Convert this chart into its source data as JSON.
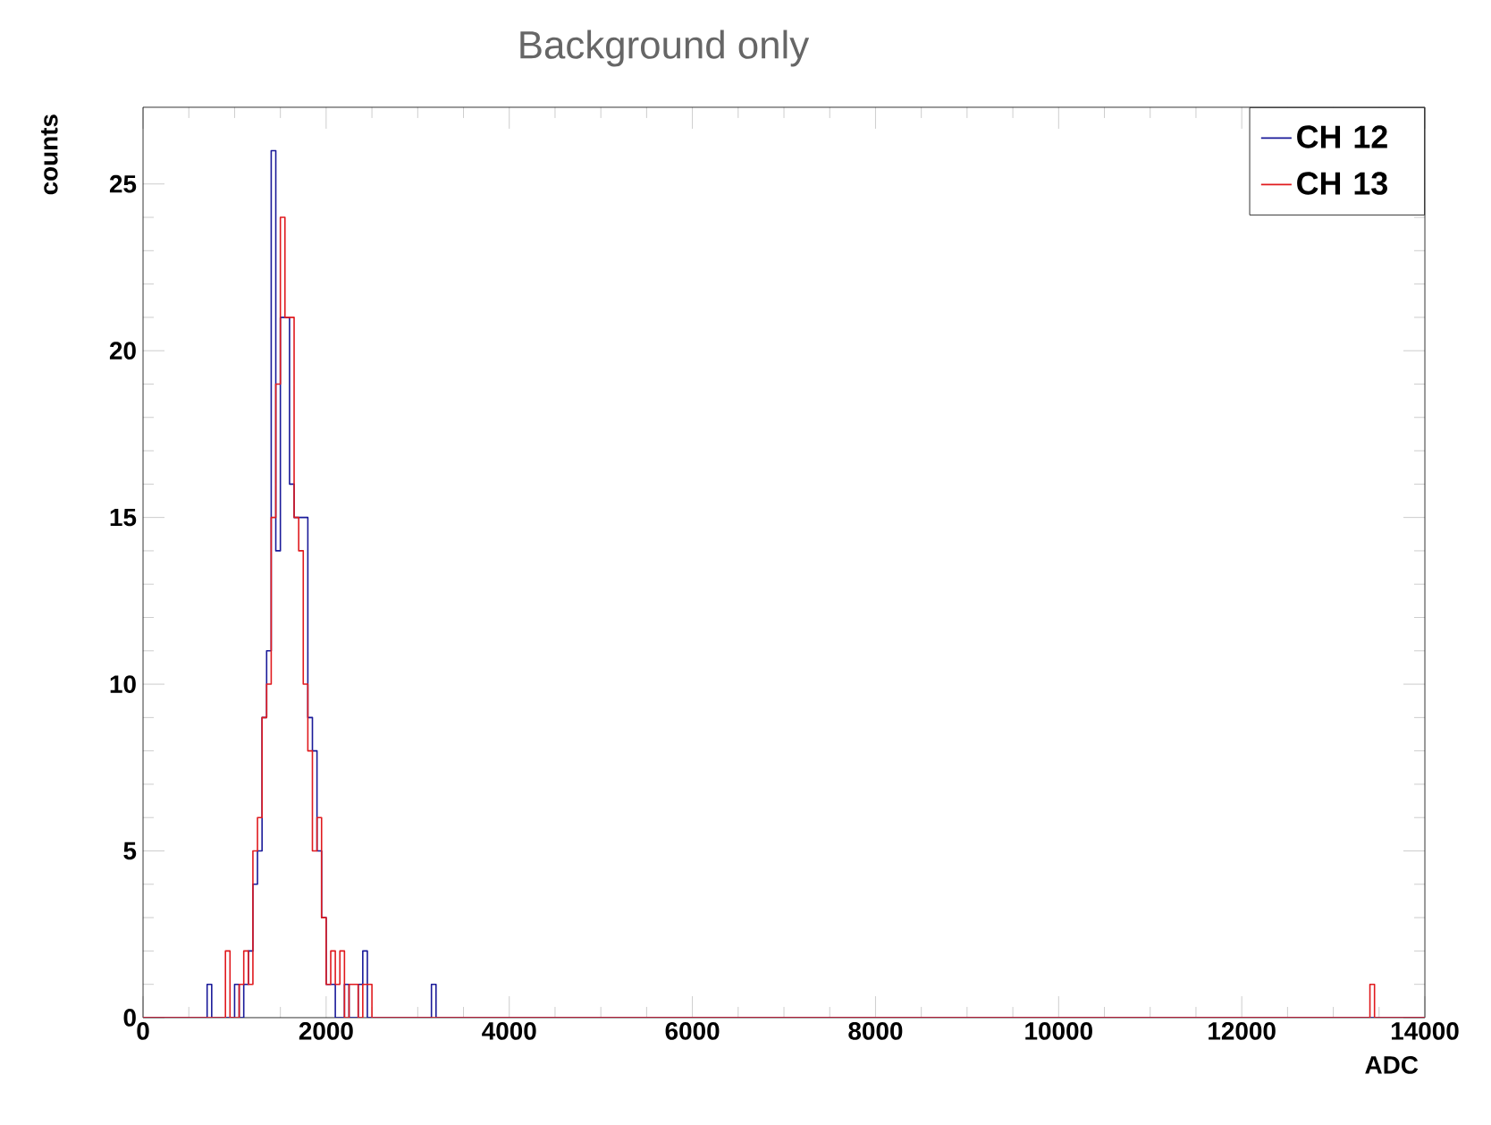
{
  "chart_data": {
    "type": "histogram",
    "title": "Background only",
    "xlabel": "ADC",
    "ylabel": "counts",
    "bins": [
      0,
      700,
      750,
      800,
      850,
      900,
      950,
      1000,
      1050,
      1100,
      1150,
      1200,
      1250,
      1300,
      1350,
      1400,
      1450,
      1500,
      1550,
      1600,
      1650,
      1700,
      1750,
      1800,
      1850,
      1900,
      1950,
      2000,
      2050,
      2100,
      2150,
      2200,
      2250,
      2300,
      2350,
      2400,
      2450,
      2500,
      2550,
      2600,
      3150,
      3200,
      13400,
      13450,
      14000
    ],
    "series": [
      {
        "name": "CH 12",
        "color": "#1a1a99",
        "values": [
          0,
          1,
          0,
          0,
          0,
          0,
          0,
          1,
          0,
          1,
          2,
          4,
          5,
          9,
          11,
          26,
          14,
          21,
          21,
          16,
          15,
          15,
          15,
          9,
          8,
          5,
          3,
          1,
          1,
          0,
          0,
          1,
          0,
          0,
          1,
          2,
          0,
          0,
          0,
          0,
          1,
          0,
          0,
          0
        ]
      },
      {
        "name": "CH 13",
        "color": "#e01a1e",
        "values": [
          0,
          0,
          0,
          0,
          0,
          2,
          0,
          0,
          1,
          2,
          1,
          5,
          6,
          9,
          10,
          15,
          19,
          24,
          21,
          21,
          15,
          14,
          10,
          8,
          5,
          6,
          3,
          1,
          2,
          1,
          2,
          0,
          1,
          1,
          0,
          1,
          1,
          0,
          0,
          0,
          0,
          0,
          1,
          0
        ]
      }
    ],
    "xlim": [
      0,
      14000
    ],
    "ylim": [
      0,
      27.3
    ],
    "xticks": [
      0,
      2000,
      4000,
      6000,
      8000,
      10000,
      12000,
      14000
    ],
    "yticks": [
      0,
      5,
      10,
      15,
      20,
      25
    ],
    "legend": "top right"
  }
}
